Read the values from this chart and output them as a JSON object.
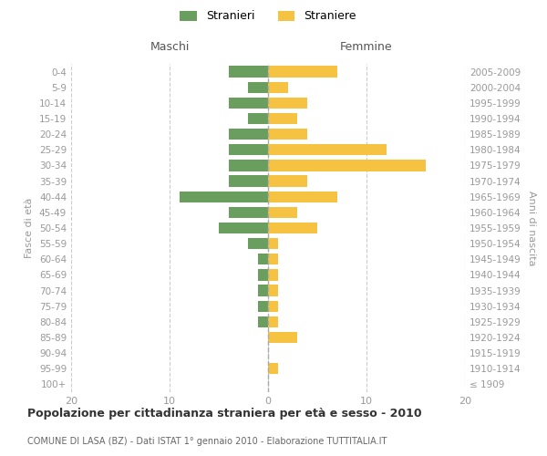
{
  "age_groups": [
    "100+",
    "95-99",
    "90-94",
    "85-89",
    "80-84",
    "75-79",
    "70-74",
    "65-69",
    "60-64",
    "55-59",
    "50-54",
    "45-49",
    "40-44",
    "35-39",
    "30-34",
    "25-29",
    "20-24",
    "15-19",
    "10-14",
    "5-9",
    "0-4"
  ],
  "birth_years": [
    "≤ 1909",
    "1910-1914",
    "1915-1919",
    "1920-1924",
    "1925-1929",
    "1930-1934",
    "1935-1939",
    "1940-1944",
    "1945-1949",
    "1950-1954",
    "1955-1959",
    "1960-1964",
    "1965-1969",
    "1970-1974",
    "1975-1979",
    "1980-1984",
    "1985-1989",
    "1990-1994",
    "1995-1999",
    "2000-2004",
    "2005-2009"
  ],
  "males": [
    0,
    0,
    0,
    0,
    1,
    1,
    1,
    1,
    1,
    2,
    5,
    4,
    9,
    4,
    4,
    4,
    4,
    2,
    4,
    2,
    4
  ],
  "females": [
    0,
    1,
    0,
    3,
    1,
    1,
    1,
    1,
    1,
    1,
    5,
    3,
    7,
    4,
    16,
    12,
    4,
    3,
    4,
    2,
    7
  ],
  "male_color": "#6a9e5e",
  "female_color": "#f5c242",
  "grid_color": "#cccccc",
  "text_color": "#999999",
  "title": "Popolazione per cittadinanza straniera per età e sesso - 2010",
  "subtitle": "COMUNE DI LASA (BZ) - Dati ISTAT 1° gennaio 2010 - Elaborazione TUTTITALIA.IT",
  "xlabel_left": "Maschi",
  "xlabel_right": "Femmine",
  "ylabel_left": "Fasce di età",
  "ylabel_right": "Anni di nascita",
  "legend_males": "Stranieri",
  "legend_females": "Straniere",
  "xlim": 20,
  "background_color": "#ffffff"
}
